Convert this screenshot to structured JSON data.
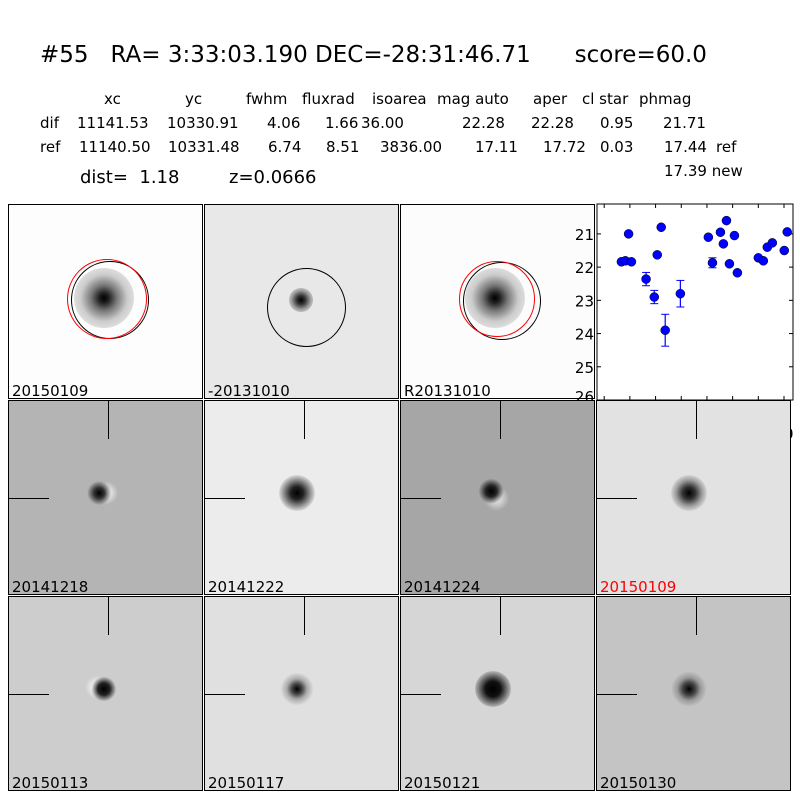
{
  "title": "#55   RA= 3:33:03.190 DEC=-28:31:46.71      score=60.0",
  "table": {
    "headers": [
      "xc",
      "yc",
      "fwhm",
      "fluxrad",
      "isoarea",
      "mag auto",
      "aper",
      "cl star",
      "phmag"
    ],
    "rows": [
      {
        "label": "dif",
        "values": [
          "11141.53",
          "10330.91",
          "4.06",
          "1.66",
          "36.00",
          "22.28",
          "22.28",
          "0.95",
          "21.71"
        ],
        "suffix": ""
      },
      {
        "label": "ref",
        "values": [
          "11140.50",
          "10331.48",
          "6.74",
          "8.51",
          "3836.00",
          "17.11",
          "17.72",
          "0.03",
          "17.44"
        ],
        "suffix": "ref"
      }
    ],
    "new_phmag": "17.39 new"
  },
  "dist": "dist=  1.18",
  "z": "z=0.0666",
  "panels_top": [
    "20150109",
    "-20131010",
    "R20131010"
  ],
  "panels": [
    {
      "label": "20141218",
      "bg": "#b4b4b4",
      "highlight": false
    },
    {
      "label": "20141222",
      "bg": "#ececec",
      "highlight": false
    },
    {
      "label": "20141224",
      "bg": "#a6a6a6",
      "highlight": false
    },
    {
      "label": "20150109",
      "bg": "#e2e2e2",
      "highlight": true
    },
    {
      "label": "20150113",
      "bg": "#cdcdcd",
      "highlight": false
    },
    {
      "label": "20150117",
      "bg": "#e0e0e0",
      "highlight": false
    },
    {
      "label": "20150121",
      "bg": "#d6d6d6",
      "highlight": false
    },
    {
      "label": "20150130",
      "bg": "#c4c4c4",
      "highlight": false
    }
  ],
  "colors": {
    "highlight": "#ff0000",
    "points": "#0000ff"
  },
  "chart_data": {
    "type": "scatter",
    "xlim": [
      -125.6,
      27
    ],
    "ylim": [
      26,
      20.1
    ],
    "inverted_y": true,
    "xticks": [
      -120,
      -100,
      -80,
      -60,
      -40,
      -20,
      0,
      20
    ],
    "yticks": [
      21,
      22,
      23,
      24,
      25,
      26
    ],
    "x": [
      -106.6,
      -103.5,
      -101,
      -98.8,
      -87.4,
      -81,
      -78.7,
      -75.6,
      -72.5,
      -60.7,
      -38.9,
      -35.7,
      -29.5,
      -27.2,
      -24.8,
      -22.5,
      -18.6,
      -16.3,
      0,
      3.9,
      7,
      10.9,
      20.2,
      22.5
    ],
    "y": [
      21.84,
      21.81,
      21.0,
      21.84,
      22.36,
      22.9,
      21.63,
      20.8,
      23.9,
      22.8,
      21.1,
      21.87,
      20.95,
      21.3,
      20.6,
      21.9,
      21.05,
      22.17,
      21.72,
      21.81,
      21.4,
      21.27,
      21.5,
      20.94
    ],
    "yerr": [
      0.03,
      0.03,
      0.03,
      0.03,
      0.2,
      0.2,
      0.03,
      0.03,
      0.48,
      0.4,
      0.03,
      0.15,
      0.03,
      0.03,
      0.03,
      0.03,
      0.03,
      0.05,
      0.03,
      0.03,
      0.03,
      0.03,
      0.03,
      0.03
    ]
  }
}
